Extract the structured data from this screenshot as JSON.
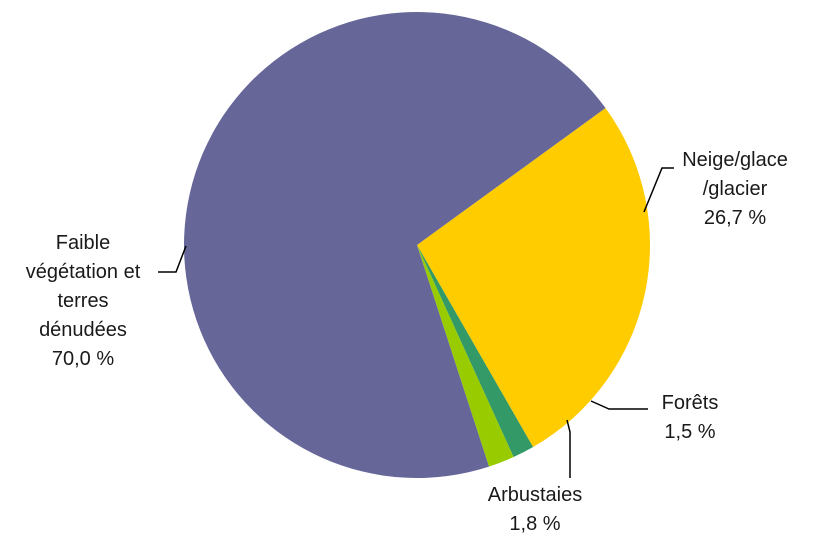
{
  "chart_data": {
    "type": "pie",
    "slices": [
      {
        "name": "Neige/glace /glacier",
        "value": 26.7,
        "value_label": "26,7 %",
        "color": "#FFCC00",
        "label_lines": [
          "Neige/glace",
          "/glacier"
        ]
      },
      {
        "name": "Forêts",
        "value": 1.5,
        "value_label": "1,5 %",
        "color": "#339966",
        "label_lines": [
          "Forêts"
        ]
      },
      {
        "name": "Arbustaies",
        "value": 1.8,
        "value_label": "1,8 %",
        "color": "#99CC00",
        "label_lines": [
          "Arbustaies"
        ]
      },
      {
        "name": "Faible végétation et terres dénudées",
        "value": 70.0,
        "value_label": "70,0 %",
        "color": "#666699",
        "label_lines": [
          "Faible",
          "végétation et",
          "terres",
          "dénudées"
        ]
      }
    ]
  }
}
